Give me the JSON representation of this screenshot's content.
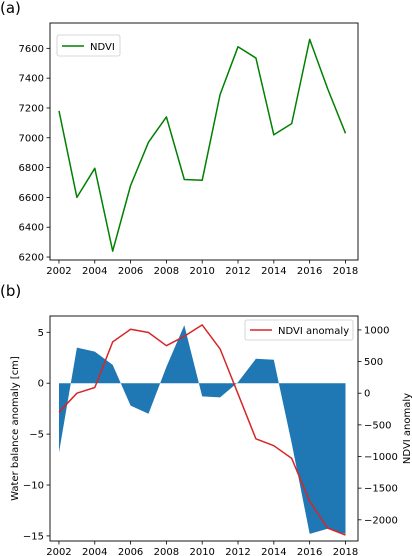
{
  "chart_data": [
    {
      "type": "line",
      "panel_label": "(a)",
      "x": [
        2002,
        2003,
        2004,
        2005,
        2006,
        2007,
        2008,
        2009,
        2010,
        2011,
        2012,
        2013,
        2014,
        2015,
        2016,
        2017,
        2018
      ],
      "series": [
        {
          "name": "NDVI",
          "color": "#008000",
          "values": [
            7180,
            6600,
            6795,
            6240,
            6680,
            6970,
            7140,
            6720,
            6715,
            7290,
            7610,
            7535,
            7020,
            7095,
            7660,
            7330,
            7030
          ]
        }
      ],
      "xlabel": "",
      "ylabel": "",
      "xlim": [
        2001.5,
        2018.7
      ],
      "ylim": [
        6180,
        7770
      ],
      "xticks": [
        2002,
        2004,
        2006,
        2008,
        2010,
        2012,
        2014,
        2016,
        2018
      ],
      "yticks": [
        6200,
        6400,
        6600,
        6800,
        7000,
        7200,
        7400,
        7600
      ],
      "grid": false,
      "legend_position": "upper-left"
    },
    {
      "type": "area",
      "panel_label": "(b)",
      "x": [
        2002,
        2003,
        2004,
        2005,
        2006,
        2007,
        2008,
        2009,
        2010,
        2011,
        2012,
        2013,
        2014,
        2015,
        2016,
        2017,
        2018
      ],
      "series": [
        {
          "name": "",
          "axis": "left",
          "kind": "fill",
          "color": "#1f77b4",
          "values": [
            -6.8,
            3.5,
            3.1,
            1.8,
            -2.2,
            -3.0,
            1.6,
            5.7,
            -1.3,
            -1.4,
            0.1,
            2.4,
            2.3,
            -5.9,
            -14.8,
            -14.3,
            -14.8
          ]
        },
        {
          "name": "NDVI anomaly",
          "axis": "right",
          "kind": "line",
          "color": "#d62728",
          "values": [
            -300,
            0,
            90,
            810,
            1010,
            960,
            750,
            900,
            1080,
            700,
            -10,
            -720,
            -830,
            -1030,
            -1710,
            -2130,
            -2240
          ]
        }
      ],
      "xlabel": "",
      "ylabel_left": "Water balance anomaly [cm]",
      "ylabel_right": "NDVI anomaly",
      "xlim": [
        2001.5,
        2018.7
      ],
      "ylim_left": [
        -15.5,
        6.6
      ],
      "ylim_right": [
        -2335,
        1220
      ],
      "xticks": [
        2002,
        2004,
        2006,
        2008,
        2010,
        2012,
        2014,
        2016,
        2018
      ],
      "yticks_left": [
        -15,
        -10,
        -5,
        0,
        5
      ],
      "yticks_right": [
        -2000,
        -1500,
        -1000,
        -500,
        0,
        500,
        1000
      ],
      "grid": false,
      "legend_position": "upper-right"
    }
  ]
}
